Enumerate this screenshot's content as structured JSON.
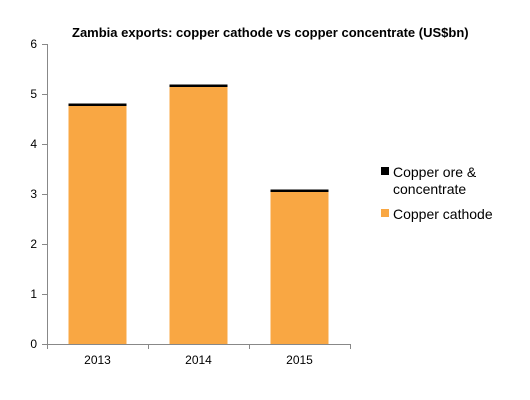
{
  "chart_data": {
    "type": "bar",
    "stacked": true,
    "title": "Zambia exports: copper cathode vs copper concentrate (US$bn)",
    "categories": [
      "2013",
      "2014",
      "2015"
    ],
    "series": [
      {
        "name": "Copper cathode",
        "values": [
          4.76,
          5.14,
          3.04
        ],
        "color": "#f9a743"
      },
      {
        "name": "Copper ore & concentrate",
        "values": [
          0.05,
          0.04,
          0.03
        ],
        "color": "#000000"
      }
    ],
    "ylim": [
      0,
      6
    ],
    "yticks": [
      "0",
      "1",
      "2",
      "3",
      "4",
      "5",
      "6"
    ],
    "grid": false,
    "legend_position": "right",
    "legend": [
      {
        "lines": [
          "Copper ore &",
          "concentrate"
        ],
        "color": "#000000"
      },
      {
        "lines": [
          "Copper cathode"
        ],
        "color": "#f9a743"
      }
    ]
  }
}
